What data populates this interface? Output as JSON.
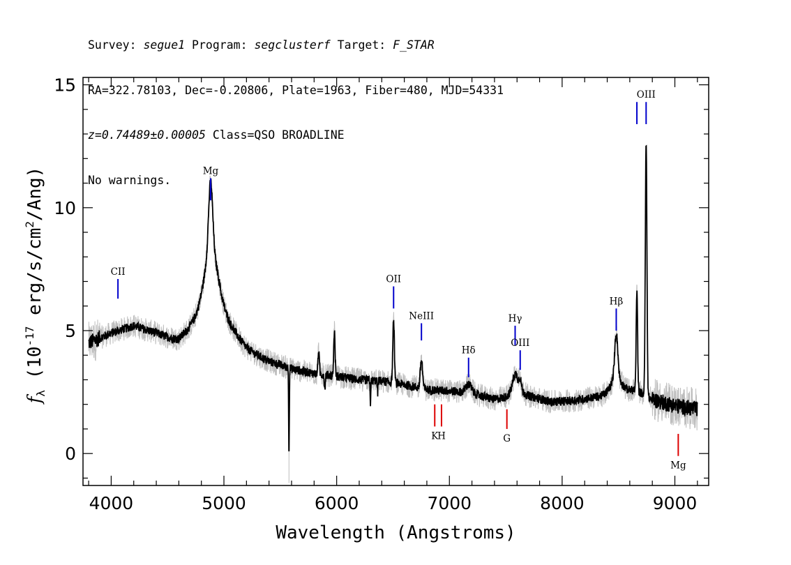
{
  "header": {
    "line1": [
      {
        "t": "Survey: ",
        "i": false
      },
      {
        "t": "segue1",
        "i": true
      },
      {
        "t": " Program: ",
        "i": false
      },
      {
        "t": "segclusterf",
        "i": true
      },
      {
        "t": " Target: ",
        "i": false
      },
      {
        "t": "F_STAR",
        "i": true
      }
    ],
    "line2": "RA=322.78103, Dec=-0.20806, Plate=1963, Fiber=480, MJD=54331",
    "line3": [
      {
        "t": "z=0.74489±0.00005",
        "i": true
      },
      {
        "t": " Class=QSO BROADLINE",
        "i": false
      }
    ],
    "line4": "No warnings."
  },
  "colors": {
    "flux": "#000000",
    "error": "#bebebe",
    "emission": "#0000cc",
    "absorption": "#dd0000"
  },
  "chart_data": {
    "type": "line",
    "xlabel": "Wavelength (Angstroms)",
    "ylabel_symbol": "f",
    "ylabel_subscript": "λ",
    "ylabel_units": "(10",
    "ylabel_exponent": "-17",
    "ylabel_units2": " erg/s/cm",
    "ylabel_exponent2": "2",
    "ylabel_units3": "/Ang)",
    "xlim": [
      3750,
      9300
    ],
    "ylim": [
      -1.3,
      15.3
    ],
    "x_ticks": [
      4000,
      5000,
      6000,
      7000,
      8000,
      9000
    ],
    "x_tick_labels": [
      "4000",
      "5000",
      "6000",
      "7000",
      "8000",
      "9000"
    ],
    "y_ticks": [
      0,
      5,
      10,
      15
    ],
    "y_tick_labels": [
      "0",
      "5",
      "10",
      "15"
    ],
    "continuum_knots": [
      [
        3800,
        4.5
      ],
      [
        4000,
        4.9
      ],
      [
        4200,
        5.2
      ],
      [
        4400,
        4.9
      ],
      [
        4600,
        4.5
      ],
      [
        4700,
        4.7
      ],
      [
        4800,
        5.0
      ],
      [
        4950,
        5.4
      ],
      [
        5050,
        4.8
      ],
      [
        5200,
        4.2
      ],
      [
        5400,
        3.75
      ],
      [
        5600,
        3.45
      ],
      [
        5800,
        3.25
      ],
      [
        6000,
        3.15
      ],
      [
        6200,
        3.0
      ],
      [
        6400,
        2.95
      ],
      [
        6600,
        2.8
      ],
      [
        6800,
        2.6
      ],
      [
        7000,
        2.55
      ],
      [
        7200,
        2.45
      ],
      [
        7400,
        2.2
      ],
      [
        7500,
        2.3
      ],
      [
        7600,
        2.65
      ],
      [
        7700,
        2.35
      ],
      [
        7900,
        2.1
      ],
      [
        8100,
        2.15
      ],
      [
        8300,
        2.3
      ],
      [
        8500,
        2.45
      ],
      [
        8650,
        2.6
      ],
      [
        8800,
        2.2
      ],
      [
        9000,
        1.95
      ],
      [
        9200,
        1.8
      ]
    ],
    "spectral_features": [
      {
        "center": 4882,
        "amp": 2.85,
        "sigma": 18
      },
      {
        "center": 4882,
        "amp": 2.0,
        "sigma": 55
      },
      {
        "center": 4882,
        "amp": 1.0,
        "sigma": 150
      },
      {
        "center": 6505,
        "amp": 2.55,
        "sigma": 7
      },
      {
        "center": 6752,
        "amp": 1.15,
        "sigma": 10
      },
      {
        "center": 7170,
        "amp": 0.35,
        "sigma": 25
      },
      {
        "center": 7583,
        "amp": 0.65,
        "sigma": 22
      },
      {
        "center": 7628,
        "amp": 0.45,
        "sigma": 10
      },
      {
        "center": 8480,
        "amp": 1.85,
        "sigma": 14
      },
      {
        "center": 8480,
        "amp": 0.6,
        "sigma": 50
      },
      {
        "center": 8663,
        "amp": 4.1,
        "sigma": 6
      },
      {
        "center": 8745,
        "amp": 10.3,
        "sigma": 7
      },
      {
        "center": 5980,
        "amp": 1.8,
        "sigma": 6
      },
      {
        "center": 5840,
        "amp": 0.95,
        "sigma": 6
      },
      {
        "center": 5577,
        "amp": -3.4,
        "sigma": 3
      },
      {
        "center": 6300,
        "amp": -0.9,
        "sigma": 3
      },
      {
        "center": 5895,
        "amp": -0.6,
        "sigma": 4
      },
      {
        "center": 6363,
        "amp": -0.5,
        "sigma": 3
      }
    ],
    "noise": {
      "flux_amplitude": 0.18,
      "error_amplitude": 0.4,
      "step": 2
    },
    "emission_lines": [
      {
        "label": "CII",
        "x": 4060,
        "y0": 6.3,
        "y1": 7.1
      },
      {
        "label": "Mg",
        "x": 4882,
        "y0": 10.3,
        "y1": 11.2
      },
      {
        "label": "OII",
        "x": 6505,
        "y0": 5.9,
        "y1": 6.8
      },
      {
        "label": "NeIII",
        "x": 6752,
        "y0": 4.6,
        "y1": 5.3
      },
      {
        "label": "Hδ",
        "x": 7170,
        "y0": 3.1,
        "y1": 3.9
      },
      {
        "label": "Hγ",
        "x": 7583,
        "y0": 4.4,
        "y1": 5.2
      },
      {
        "label": "OIII",
        "x": 7628,
        "y0": 3.4,
        "y1": 4.2
      },
      {
        "label": "Hβ",
        "x": 8480,
        "y0": 5.0,
        "y1": 5.9
      },
      {
        "label": "",
        "x": 8663,
        "y0": 13.4,
        "y1": 14.3
      },
      {
        "label": "OIII",
        "x": 8745,
        "y0": 13.4,
        "y1": 14.3
      }
    ],
    "absorption_lines": [
      {
        "label": "K",
        "x": 6870,
        "y0": 1.1,
        "y1": 2.0
      },
      {
        "label": "H",
        "x": 6930,
        "y0": 1.1,
        "y1": 2.0
      },
      {
        "label": "G",
        "x": 7510,
        "y0": 1.0,
        "y1": 1.8
      },
      {
        "label": "Mg",
        "x": 9030,
        "y0": -0.1,
        "y1": 0.8
      }
    ]
  }
}
